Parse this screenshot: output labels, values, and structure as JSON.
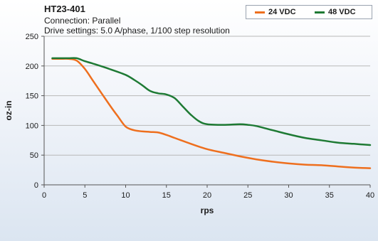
{
  "chart_data": {
    "type": "line",
    "title": "HT23-401",
    "subtitle": [
      "Connection: Parallel",
      "Drive settings: 5.0 A/phase, 1/100 step resolution"
    ],
    "xlabel": "rps",
    "ylabel": "oz-in",
    "xlim": [
      0,
      40
    ],
    "ylim": [
      0,
      250
    ],
    "xticks": [
      0,
      5,
      10,
      15,
      20,
      25,
      30,
      35,
      40
    ],
    "yticks": [
      0,
      50,
      100,
      150,
      200,
      250
    ],
    "grid": "horizontal",
    "legend_position": "top-right",
    "series": [
      {
        "name": "24 VDC",
        "color": "#ee6f1e",
        "x": [
          1,
          2,
          3,
          4,
          5,
          6,
          7,
          8,
          9,
          10,
          11,
          12,
          13,
          14,
          15,
          16,
          18,
          20,
          22,
          24,
          26,
          28,
          30,
          32,
          34,
          36,
          38,
          40
        ],
        "y": [
          212,
          212,
          212,
          209,
          195,
          175,
          155,
          135,
          116,
          98,
          92,
          90,
          89,
          88,
          84,
          79,
          69,
          60,
          54,
          48,
          43,
          39,
          36,
          34,
          33,
          31,
          29,
          28
        ]
      },
      {
        "name": "48 VDC",
        "color": "#1e7a34",
        "x": [
          1,
          2,
          3,
          4,
          5,
          6,
          8,
          10,
          11,
          12,
          13,
          14,
          15,
          16,
          17,
          18,
          19,
          20,
          22,
          24,
          25,
          26,
          28,
          30,
          32,
          34,
          36,
          38,
          40
        ],
        "y": [
          213,
          213,
          213,
          213,
          208,
          204,
          195,
          185,
          177,
          168,
          158,
          154,
          152,
          146,
          132,
          118,
          107,
          102,
          101,
          102,
          101,
          99,
          92,
          85,
          79,
          75,
          71,
          69,
          67
        ]
      }
    ]
  }
}
